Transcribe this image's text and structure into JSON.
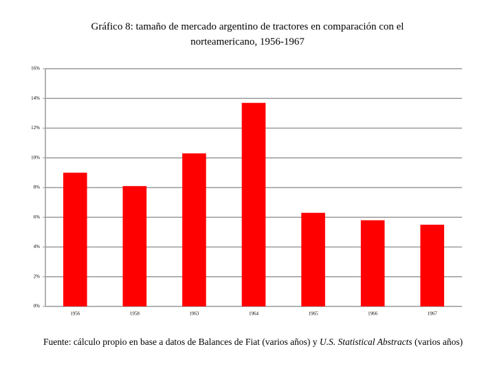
{
  "chart_data": {
    "type": "bar",
    "title": "Gráfico 8: tamaño de mercado argentino de tractores en comparación con el norteamericano, 1956-1967",
    "categories": [
      "1956",
      "1958",
      "1963",
      "1964",
      "1965",
      "1966",
      "1967"
    ],
    "values": [
      9.0,
      8.1,
      10.3,
      13.7,
      6.3,
      5.8,
      5.5
    ],
    "color": "#ff0000",
    "ylim": [
      0,
      16
    ],
    "yticks": [
      {
        "value": 0,
        "label": "0%"
      },
      {
        "value": 2,
        "label": "2%"
      },
      {
        "value": 4,
        "label": "4%"
      },
      {
        "value": 6,
        "label": "6%"
      },
      {
        "value": 8,
        "label": "8%"
      },
      {
        "value": 10,
        "label": "10%"
      },
      {
        "value": 12,
        "label": "12%"
      },
      {
        "value": 14,
        "label": "14%"
      },
      {
        "value": 16,
        "label": "16%"
      }
    ],
    "grid": true,
    "source": {
      "prefix": "Fuente: cálculo propio en base a datos de Balances de Fiat (varios años) y ",
      "italic": "U.S. Statistical Abstracts",
      "suffix": " (varios años)"
    }
  }
}
